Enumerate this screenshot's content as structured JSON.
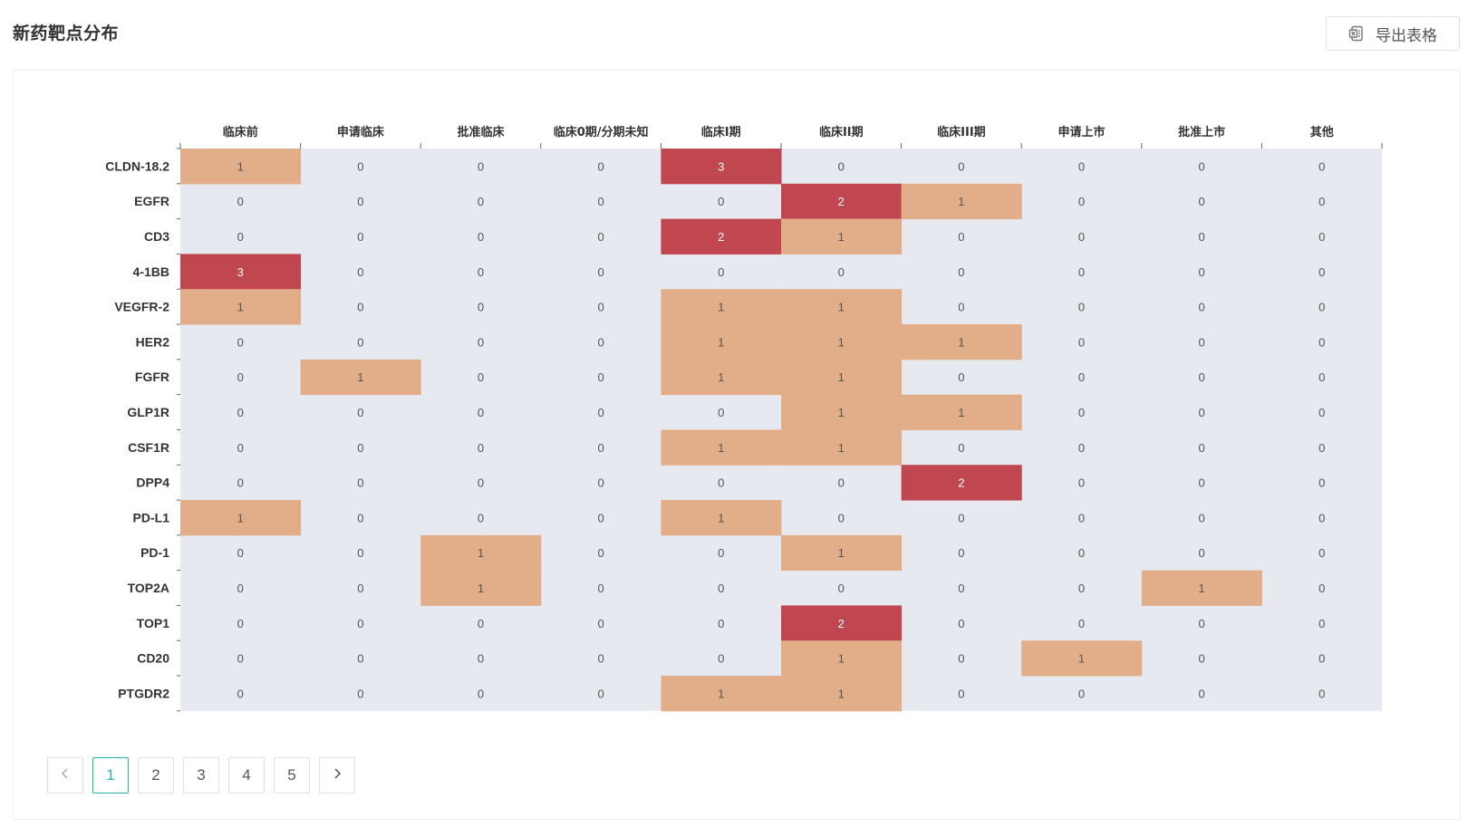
{
  "page": {
    "title": "新药靶点分布",
    "export_label": "导出表格"
  },
  "pagination": {
    "pages": [
      "1",
      "2",
      "3",
      "4",
      "5"
    ],
    "current": "1"
  },
  "colors": {
    "cell_background": "#e6e9ef",
    "low": "#e2ae89",
    "high": "#c0464f"
  },
  "chart_data": {
    "type": "heatmap",
    "x_categories": [
      "临床前",
      "申请临床",
      "批准临床",
      "临床0期/分期未知",
      "临床I期",
      "临床II期",
      "临床III期",
      "申请上市",
      "批准上市",
      "其他"
    ],
    "y_categories": [
      "CLDN-18.2",
      "EGFR",
      "CD3",
      "4-1BB",
      "VEGFR-2",
      "HER2",
      "FGFR",
      "GLP1R",
      "CSF1R",
      "DPP4",
      "PD-L1",
      "PD-1",
      "TOP2A",
      "TOP1",
      "CD20",
      "PTGDR2"
    ],
    "values": [
      [
        1,
        0,
        0,
        0,
        3,
        0,
        0,
        0,
        0,
        0
      ],
      [
        0,
        0,
        0,
        0,
        0,
        2,
        1,
        0,
        0,
        0
      ],
      [
        0,
        0,
        0,
        0,
        2,
        1,
        0,
        0,
        0,
        0
      ],
      [
        3,
        0,
        0,
        0,
        0,
        0,
        0,
        0,
        0,
        0
      ],
      [
        1,
        0,
        0,
        0,
        1,
        1,
        0,
        0,
        0,
        0
      ],
      [
        0,
        0,
        0,
        0,
        1,
        1,
        1,
        0,
        0,
        0
      ],
      [
        0,
        1,
        0,
        0,
        1,
        1,
        0,
        0,
        0,
        0
      ],
      [
        0,
        0,
        0,
        0,
        0,
        1,
        1,
        0,
        0,
        0
      ],
      [
        0,
        0,
        0,
        0,
        1,
        1,
        0,
        0,
        0,
        0
      ],
      [
        0,
        0,
        0,
        0,
        0,
        0,
        2,
        0,
        0,
        0
      ],
      [
        1,
        0,
        0,
        0,
        1,
        0,
        0,
        0,
        0,
        0
      ],
      [
        0,
        0,
        1,
        0,
        0,
        1,
        0,
        0,
        0,
        0
      ],
      [
        0,
        0,
        1,
        0,
        0,
        0,
        0,
        0,
        1,
        0
      ],
      [
        0,
        0,
        0,
        0,
        0,
        2,
        0,
        0,
        0,
        0
      ],
      [
        0,
        0,
        0,
        0,
        0,
        1,
        0,
        1,
        0,
        0
      ],
      [
        0,
        0,
        0,
        0,
        1,
        1,
        0,
        0,
        0,
        0
      ]
    ],
    "legend": "none",
    "grid": false
  }
}
